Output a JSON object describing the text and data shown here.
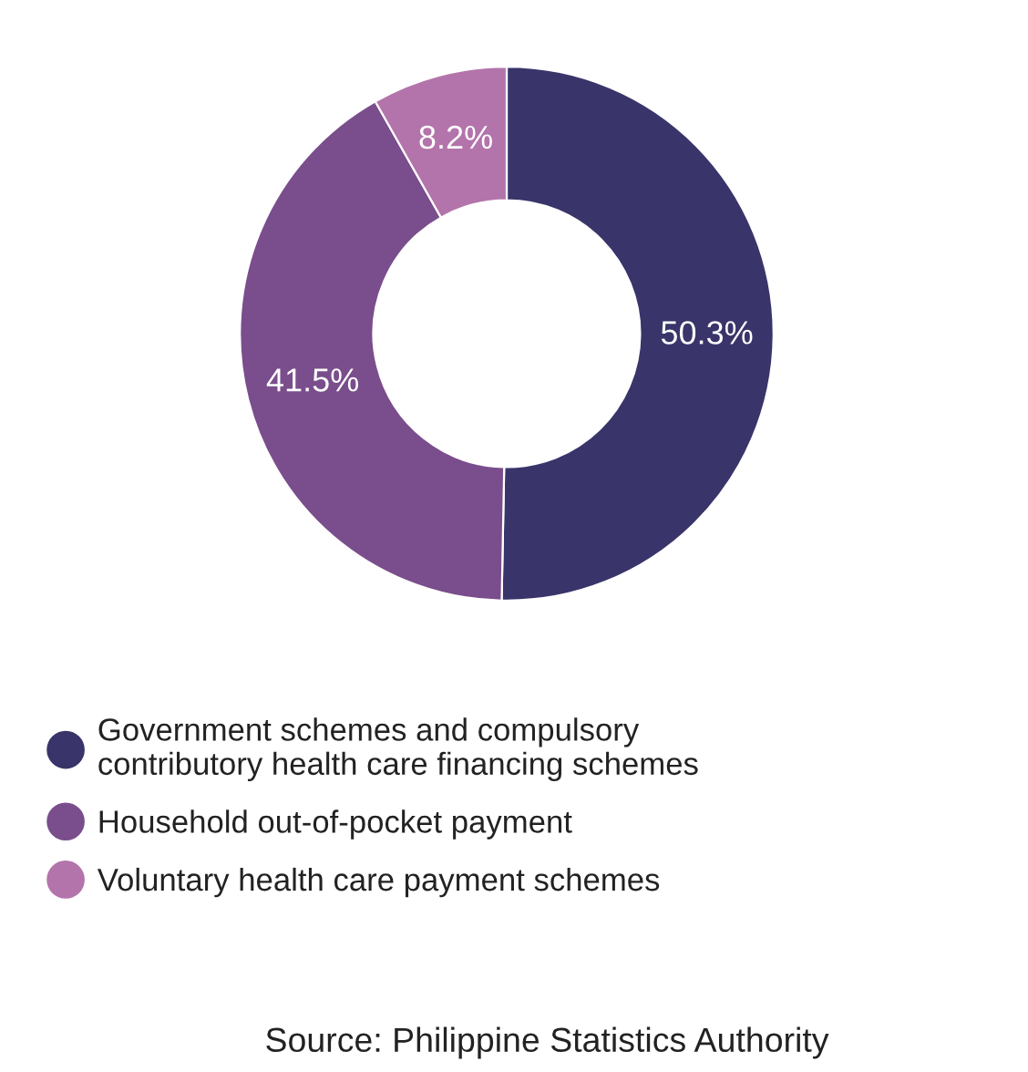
{
  "chart_data": {
    "type": "donut",
    "categories": [
      "Government schemes and compulsory\ncontributory health care financing schemes",
      "Household out-of-pocket payment",
      "Voluntary health care payment schemes"
    ],
    "values": [
      50.3,
      41.5,
      8.2
    ],
    "value_labels": [
      "50.3%",
      "41.5%",
      "8.2%"
    ],
    "colors": [
      "#393469",
      "#7a4d8c",
      "#b374ab"
    ],
    "legend": "bottom",
    "annotations": [
      "Source: Philippine Statistics Authority"
    ]
  }
}
